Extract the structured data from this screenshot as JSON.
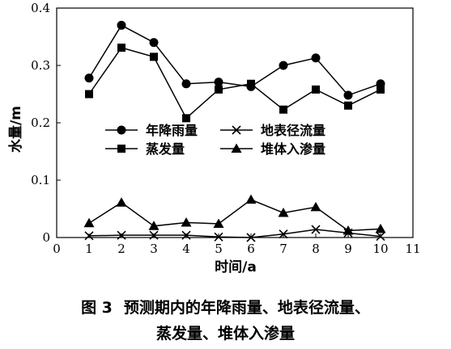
{
  "chart_data": {
    "type": "line",
    "xlabel": "时间/a",
    "ylabel": "水量/m",
    "xlim": [
      0,
      11
    ],
    "ylim": [
      0,
      0.4
    ],
    "x_ticks": [
      0,
      1,
      2,
      3,
      4,
      5,
      6,
      7,
      8,
      9,
      10,
      11
    ],
    "y_ticks": [
      0,
      0.1,
      0.2,
      0.3,
      0.4
    ],
    "y_tick_labels": [
      "0",
      "0.1",
      "0.2",
      "0.3",
      "0.4"
    ],
    "grid": false,
    "legend_position": "center",
    "x": [
      1,
      2,
      3,
      4,
      5,
      6,
      7,
      8,
      9,
      10
    ],
    "series": [
      {
        "name": "年降雨量",
        "marker": "circle",
        "values": [
          0.278,
          0.37,
          0.34,
          0.268,
          0.271,
          0.263,
          0.3,
          0.313,
          0.248,
          0.268
        ]
      },
      {
        "name": "蒸发量",
        "marker": "square",
        "values": [
          0.25,
          0.331,
          0.315,
          0.208,
          0.258,
          0.268,
          0.223,
          0.258,
          0.23,
          0.258
        ]
      },
      {
        "name": "地表径流量",
        "marker": "x",
        "values": [
          0.003,
          0.004,
          0.004,
          0.004,
          0.001,
          0.0,
          0.006,
          0.014,
          0.008,
          0.002
        ]
      },
      {
        "name": "堆体入渗量",
        "marker": "triangle",
        "values": [
          0.025,
          0.061,
          0.02,
          0.026,
          0.024,
          0.066,
          0.043,
          0.053,
          0.012,
          0.015
        ]
      }
    ],
    "legend_order": [
      0,
      2,
      1,
      3
    ]
  },
  "caption": {
    "figure_number": "图 3",
    "line1": "预测期内的年降雨量、地表径流量、",
    "line2": "蒸发量、堆体入渗量"
  }
}
